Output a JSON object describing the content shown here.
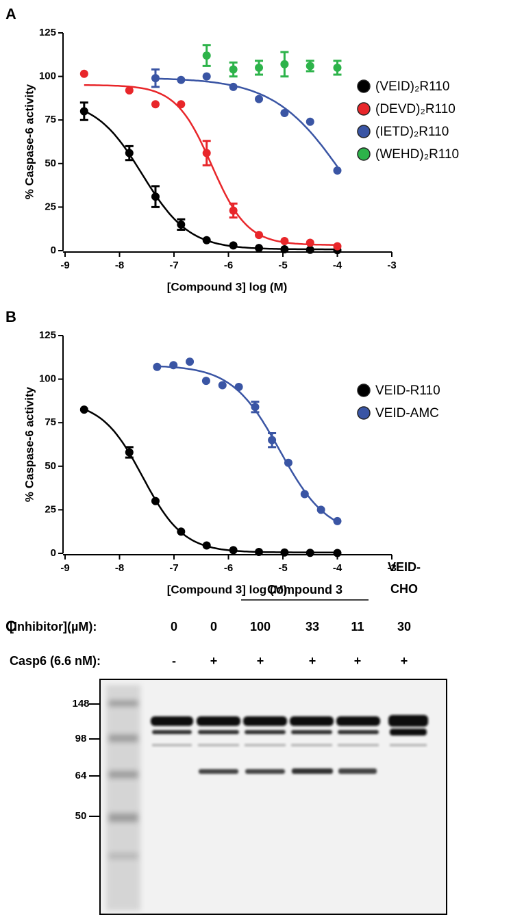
{
  "chart_data": [
    {
      "type": "scatter",
      "panel": "A",
      "ylabel": "% Caspase-6 activity",
      "xlabel": "[Compound 3] log (M)",
      "xlim": [
        -9,
        -3
      ],
      "xticks": [
        -9,
        -8,
        -7,
        -6,
        -5,
        -4,
        -3
      ],
      "ylim": [
        0,
        125
      ],
      "yticks": [
        0,
        25,
        50,
        75,
        100,
        125
      ],
      "legend": "right",
      "series": [
        {
          "name": "(VEID)₂R110",
          "color": "#000000",
          "fit": true,
          "x": [
            -8.65,
            -7.82,
            -7.34,
            -6.87,
            -6.4,
            -5.91,
            -5.44,
            -4.97,
            -4.5,
            -4
          ],
          "values": [
            80,
            56,
            31,
            15,
            6,
            3,
            1.5,
            0.8,
            0.5,
            0.3
          ],
          "errors": [
            5,
            4,
            6,
            3,
            null,
            null,
            null,
            null,
            null,
            null
          ]
        },
        {
          "name": "(DEVD)₂R110",
          "color": "#e8262a",
          "fit": true,
          "x": [
            -8.65,
            -7.82,
            -7.34,
            -6.87,
            -6.4,
            -5.91,
            -5.44,
            -4.97,
            -4.5,
            -4
          ],
          "values": [
            101.5,
            92,
            84,
            84,
            56,
            23,
            9,
            5.5,
            4.5,
            2.5
          ],
          "errors": [
            null,
            null,
            null,
            null,
            7,
            4,
            null,
            null,
            null,
            null
          ]
        },
        {
          "name": "(IETD)₂R110",
          "color": "#3a55a4",
          "fit": true,
          "x": [
            -7.34,
            -6.87,
            -6.4,
            -5.91,
            -5.44,
            -4.97,
            -4.5,
            -4
          ],
          "values": [
            99,
            98,
            100,
            94,
            87,
            79,
            74,
            46
          ],
          "errors": [
            5,
            null,
            null,
            null,
            null,
            null,
            null,
            null
          ]
        },
        {
          "name": "(WEHD)₂R110",
          "color": "#2db34a",
          "fit": false,
          "x": [
            -6.4,
            -5.91,
            -5.44,
            -4.97,
            -4.5,
            -4
          ],
          "values": [
            112,
            104,
            105,
            107,
            106,
            105
          ],
          "errors": [
            6,
            4,
            4,
            7,
            3,
            4
          ]
        }
      ]
    },
    {
      "type": "scatter",
      "panel": "B",
      "ylabel": "% Caspase-6 activity",
      "xlabel": "[Compound 3] log (M)",
      "xlim": [
        -9,
        -3
      ],
      "xticks": [
        -9,
        -8,
        -7,
        -6,
        -5,
        -4,
        -3
      ],
      "ylim": [
        0,
        125
      ],
      "yticks": [
        0,
        25,
        50,
        75,
        100,
        125
      ],
      "legend": "right",
      "series": [
        {
          "name": "VEID-R110",
          "color": "#000000",
          "fit": true,
          "x": [
            -8.65,
            -7.82,
            -7.34,
            -6.87,
            -6.4,
            -5.91,
            -5.44,
            -4.97,
            -4.5,
            -4
          ],
          "values": [
            82.5,
            58,
            30,
            12.5,
            4.5,
            1.8,
            0.8,
            0.5,
            0.3,
            0.2
          ],
          "errors": [
            null,
            3,
            null,
            null,
            null,
            null,
            null,
            null,
            null,
            null
          ]
        },
        {
          "name": "VEID-AMC",
          "color": "#3a55a4",
          "fit": true,
          "x": [
            -7.31,
            -7.01,
            -6.71,
            -6.41,
            -6.11,
            -5.81,
            -5.51,
            -5.2,
            -4.9,
            -4.6,
            -4.3,
            -4
          ],
          "values": [
            107,
            108,
            110,
            99,
            96.5,
            95.5,
            84,
            65,
            52,
            34,
            25,
            18.5
          ],
          "errors": [
            null,
            null,
            null,
            null,
            null,
            null,
            3,
            4,
            null,
            null,
            null,
            null
          ]
        }
      ]
    }
  ],
  "panel_c": {
    "label": "C",
    "group_label": "Compound 3",
    "control_label": [
      "VEID-",
      "CHO"
    ],
    "rows": [
      {
        "label": "[Inhibitor](µM):",
        "values": [
          0,
          0,
          100,
          33,
          11,
          30
        ]
      },
      {
        "label": "Casp6 (6.6 nM):",
        "values": [
          "-",
          "+",
          "+",
          "+",
          "+",
          "+"
        ]
      }
    ],
    "markers": [
      148,
      98,
      64,
      50
    ]
  }
}
